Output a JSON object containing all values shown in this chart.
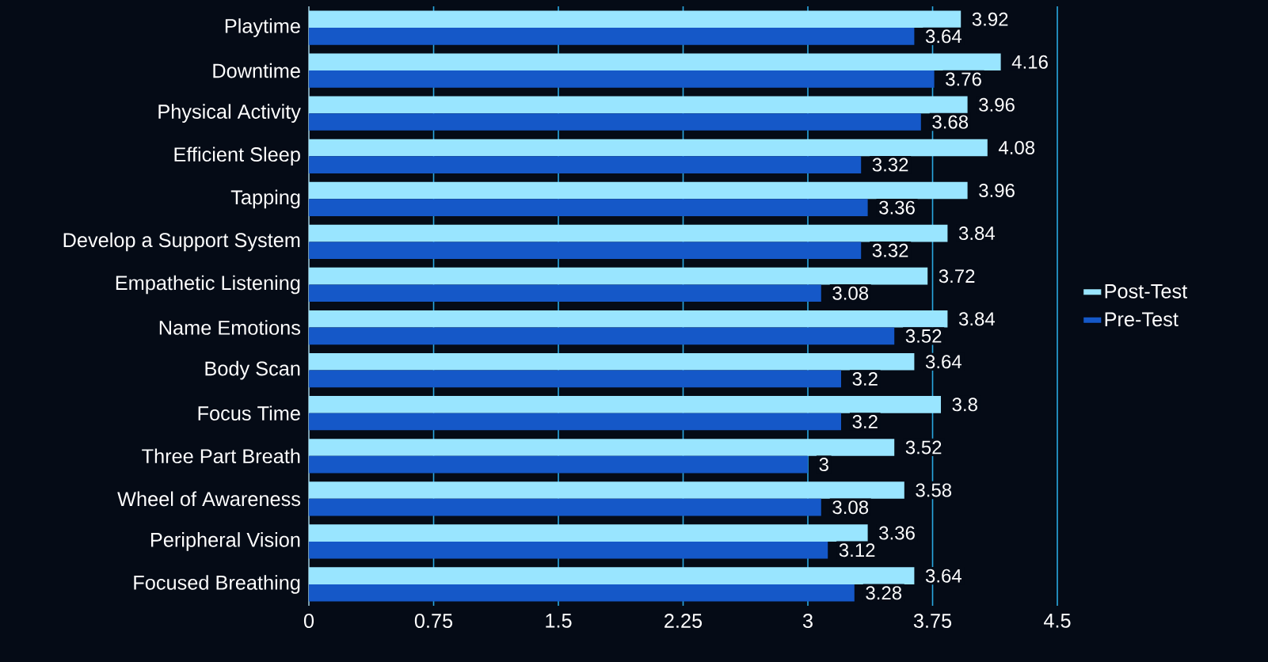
{
  "chart_data": {
    "type": "bar",
    "orientation": "horizontal",
    "categories": [
      "Playtime",
      "Downtime",
      "Physical Activity",
      "Efficient Sleep",
      "Tapping",
      "Develop a Support System",
      "Empathetic Listening",
      "Name Emotions",
      "Body Scan",
      "Focus Time",
      "Three Part Breath",
      "Wheel of Awareness",
      "Peripheral Vision",
      "Focused Breathing"
    ],
    "series": [
      {
        "name": "Post-Test",
        "color": "#99e5ff",
        "values": [
          3.92,
          4.16,
          3.96,
          4.08,
          3.96,
          3.84,
          3.72,
          3.84,
          3.64,
          3.8,
          3.52,
          3.58,
          3.36,
          3.64
        ]
      },
      {
        "name": "Pre-Test",
        "color": "#1558c8",
        "values": [
          3.64,
          3.76,
          3.68,
          3.32,
          3.36,
          3.32,
          3.08,
          3.52,
          3.2,
          3.2,
          3,
          3.08,
          3.12,
          3.28
        ]
      }
    ],
    "xlim": [
      0,
      4.5
    ],
    "xticks": [
      0,
      0.75,
      1.5,
      2.25,
      3,
      3.75,
      4.5
    ],
    "grid": "x",
    "legend": "right",
    "data_labels": true
  }
}
